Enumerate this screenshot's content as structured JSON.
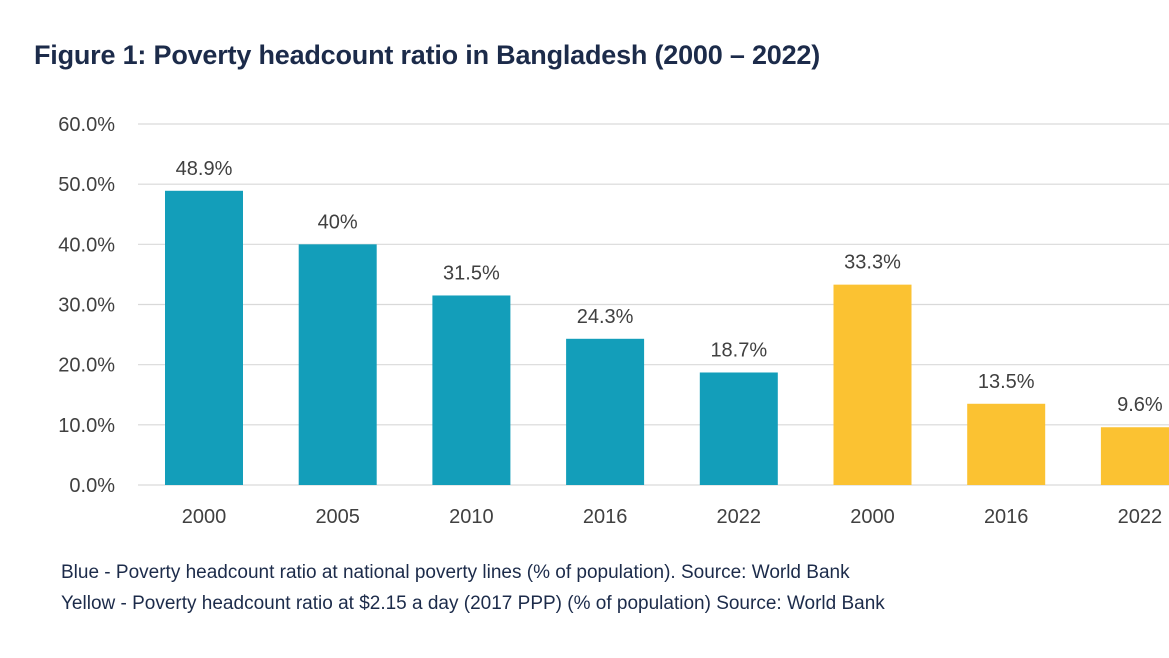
{
  "title": "Figure 1: Poverty headcount ratio in Bangladesh (2000 – 2022)",
  "notes": [
    "Blue - Poverty headcount ratio at national poverty lines (% of population). Source: World Bank",
    "Yellow - Poverty headcount ratio at $2.15 a day (2017 PPP) (% of population) Source: World Bank"
  ],
  "colors": {
    "blue": "#139eba",
    "yellow": "#fbc232",
    "grid": "#d9d9d9",
    "text": "#404040"
  },
  "chart_data": {
    "type": "bar",
    "title": "Figure 1: Poverty headcount ratio in Bangladesh (2000 – 2022)",
    "xlabel": "",
    "ylabel": "",
    "ylim": [
      0,
      60
    ],
    "grid": true,
    "yticks": [
      "0.0%",
      "10.0%",
      "20.0%",
      "30.0%",
      "40.0%",
      "50.0%",
      "60.0%"
    ],
    "categories": [
      "2000",
      "2005",
      "2010",
      "2016",
      "2022",
      "2000",
      "2016",
      "2022"
    ],
    "values": [
      48.9,
      40,
      31.5,
      24.3,
      18.7,
      33.3,
      13.5,
      9.6
    ],
    "data_labels": [
      "48.9%",
      "40%",
      "31.5%",
      "24.3%",
      "18.7%",
      "33.3%",
      "13.5%",
      "9.6%"
    ],
    "bar_colors": [
      "blue",
      "blue",
      "blue",
      "blue",
      "blue",
      "yellow",
      "yellow",
      "yellow"
    ]
  }
}
